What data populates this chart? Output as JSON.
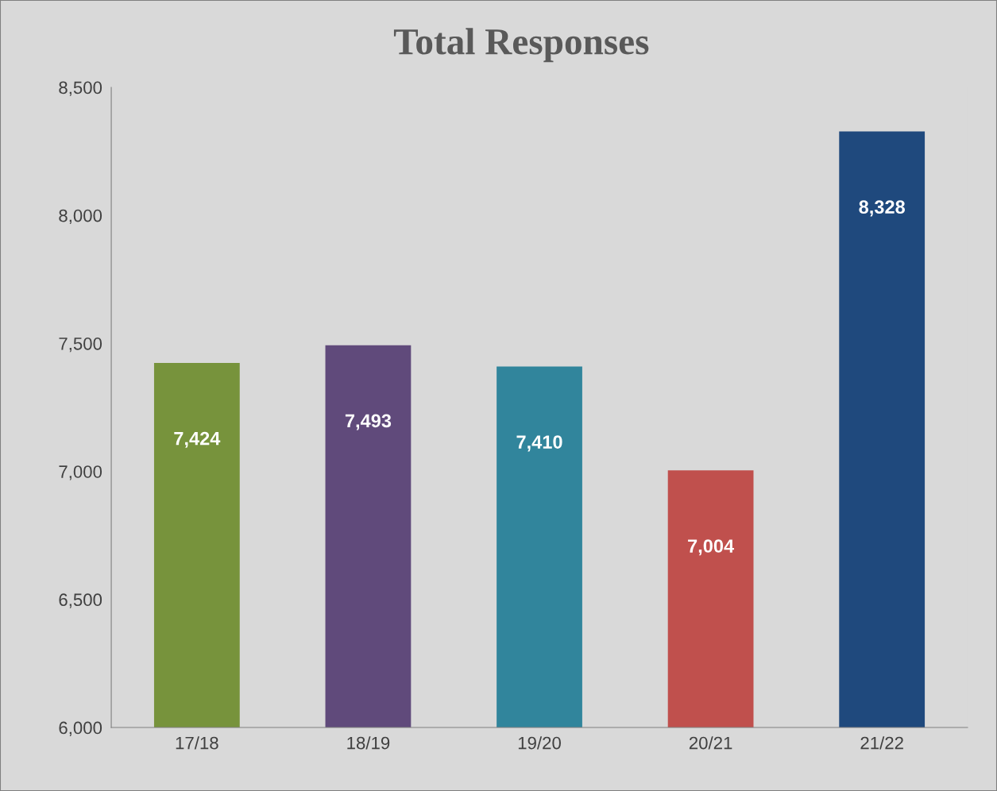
{
  "chart_data": {
    "type": "bar",
    "title": "Total Responses",
    "categories": [
      "17/18",
      "18/19",
      "19/20",
      "20/21",
      "21/22"
    ],
    "values": [
      7424,
      7493,
      7410,
      7004,
      8328
    ],
    "colors": [
      "#77933c",
      "#604a7b",
      "#31859c",
      "#c0504d",
      "#1f497d"
    ],
    "value_labels": [
      "7,424",
      "7,493",
      "7,410",
      "7,004",
      "8,328"
    ],
    "ylim": [
      6000,
      8500
    ],
    "yticks": [
      {
        "value": 6000,
        "label": "6,000"
      },
      {
        "value": 6500,
        "label": "6,500"
      },
      {
        "value": 7000,
        "label": "7,000"
      },
      {
        "value": 7500,
        "label": "7,500"
      },
      {
        "value": 8000,
        "label": "8,000"
      },
      {
        "value": 8500,
        "label": "8,500"
      }
    ],
    "grid": false,
    "legend": false
  }
}
